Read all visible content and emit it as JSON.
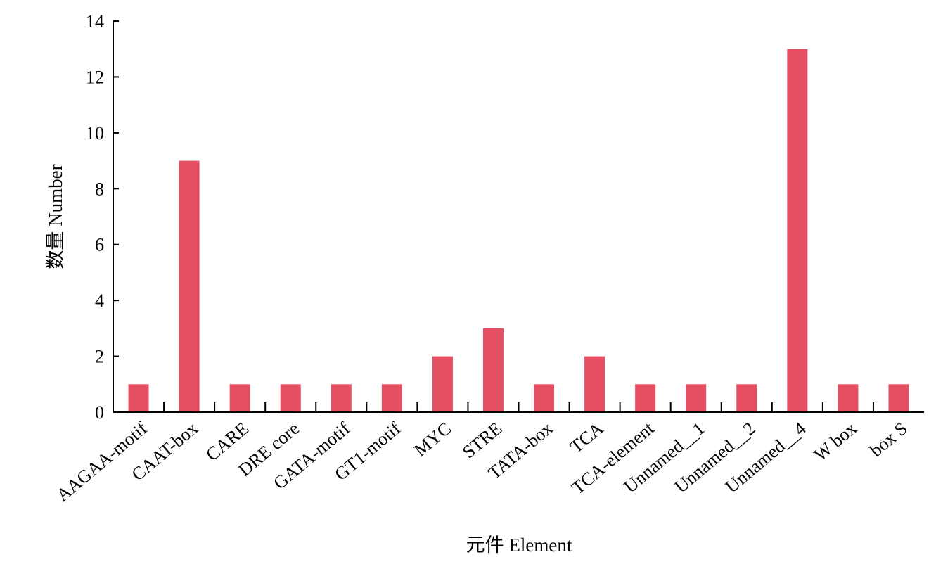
{
  "colors": {
    "bar": "#E54F64",
    "axis": "#000000"
  },
  "chart_data": {
    "type": "bar",
    "title": "",
    "xlabel": "元件 Element",
    "ylabel": "数量 Number",
    "ylim": [
      0,
      14
    ],
    "yticks": [
      0,
      2,
      4,
      6,
      8,
      10,
      12,
      14
    ],
    "grid": false,
    "categories": [
      "AAGAA-motif",
      "CAAT-box",
      "CARE",
      "DRE core",
      "GATA-motif",
      "GT1-motif",
      "MYC",
      "STRE",
      "TATA-box",
      "TCA",
      "TCA-element",
      "Unnamed__1",
      "Unnamed__2",
      "Unnamed__4",
      "W box",
      "box S"
    ],
    "values": [
      1,
      9,
      1,
      1,
      1,
      1,
      2,
      3,
      1,
      2,
      1,
      1,
      1,
      13,
      1,
      1
    ]
  }
}
